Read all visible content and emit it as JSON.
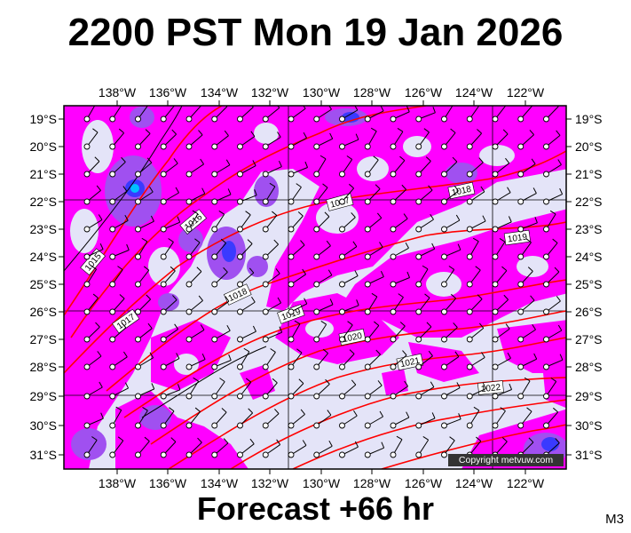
{
  "title": "2200 PST Mon 19 Jan 2026",
  "subtitle": "Forecast +66 hr",
  "model_label": "M3",
  "copyright": "Copyright metvuw.com",
  "longitude_labels": [
    "138°W",
    "136°W",
    "134°W",
    "132°W",
    "130°W",
    "128°W",
    "126°W",
    "124°W",
    "122°W"
  ],
  "latitude_labels": [
    "19°S",
    "20°S",
    "21°S",
    "22°S",
    "23°S",
    "24°S",
    "25°S",
    "26°S",
    "27°S",
    "28°S",
    "29°S",
    "30°S",
    "31°S"
  ],
  "isobar_labels": [
    "1015",
    "1016",
    "1017",
    "1017",
    "1018",
    "1018",
    "1019",
    "1019",
    "1020",
    "1021",
    "1022"
  ],
  "colors": {
    "background": "#e4e4f8",
    "rain_light": "#ff00ff",
    "rain_medium": "#8e44e8",
    "rain_heavy": "#3030ff",
    "isobar": "#ff0000"
  }
}
